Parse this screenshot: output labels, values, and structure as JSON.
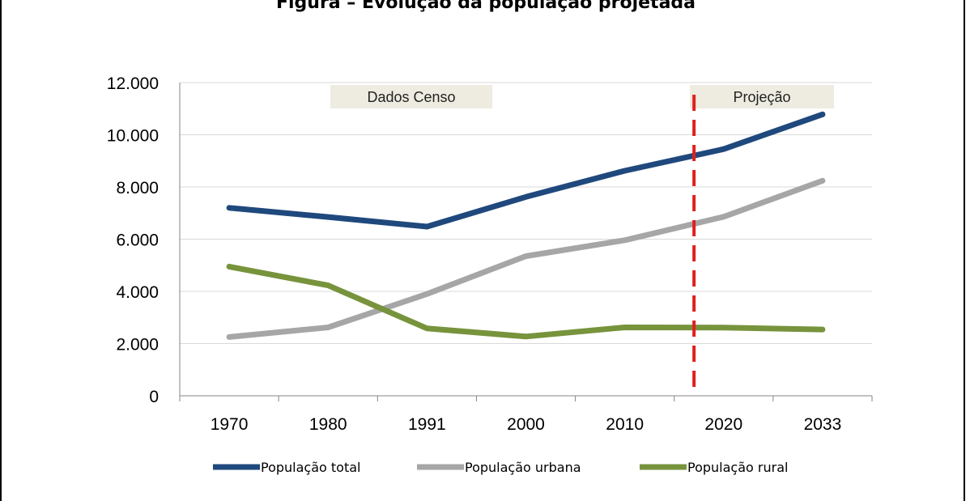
{
  "chart_data": {
    "type": "line",
    "title": "Figura – Evolução da população projetada",
    "categories": [
      "1970",
      "1980",
      "1991",
      "2000",
      "2010",
      "2020",
      "2033"
    ],
    "ylim": [
      0,
      12000
    ],
    "yticks": [
      "0",
      "2.000",
      "4.000",
      "6.000",
      "8.000",
      "10.000",
      "12.000"
    ],
    "grid": true,
    "legend_position": "bottom",
    "series": [
      {
        "name": "População total",
        "color": "#1f497d",
        "values": [
          7200,
          6850,
          6480,
          7620,
          8620,
          9450,
          10780
        ]
      },
      {
        "name": "População urbana",
        "color": "#a6a6a6",
        "values": [
          2250,
          2620,
          3900,
          5350,
          5960,
          6860,
          8240
        ]
      },
      {
        "name": "População rural",
        "color": "#77933c",
        "values": [
          4950,
          4230,
          2580,
          2270,
          2620,
          2610,
          2540
        ]
      }
    ],
    "annotations": [
      {
        "text": "Dados Censo",
        "region": "historical"
      },
      {
        "text": "Projeção",
        "region": "projection"
      }
    ],
    "divider": {
      "position_category": 4.7,
      "color": "#e02020",
      "style": "dashed"
    }
  }
}
